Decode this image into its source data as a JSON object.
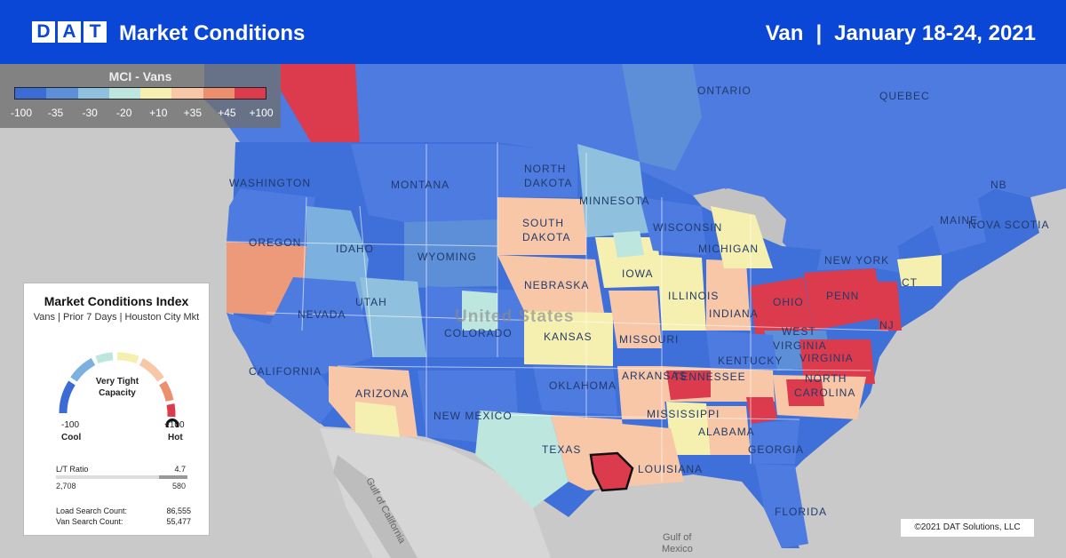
{
  "header": {
    "logo": [
      "D",
      "A",
      "T"
    ],
    "title": "Market Conditions",
    "equipment": "Van",
    "separator": "|",
    "date_range": "January 18-24, 2021"
  },
  "legend": {
    "title": "MCI - Vans",
    "colors": [
      "#3b6bd4",
      "#5d8fd8",
      "#8fc0de",
      "#bde6de",
      "#f6f0b0",
      "#f7c7a8",
      "#ec8f6f",
      "#db3b4c"
    ],
    "ticks": [
      "-100",
      "-35",
      "-30",
      "-20",
      "+10",
      "+35",
      "+45",
      "+100"
    ]
  },
  "map_labels": {
    "country": "United States",
    "regions": [
      "ONTARIO",
      "QUEBEC",
      "NORTH",
      "DAKOTA",
      "SOUTH",
      "DAKOTA",
      "WASHINGTON",
      "MONTANA",
      "MINNESOTA",
      "OREGON",
      "IDAHO",
      "WYOMING",
      "WISCONSIN",
      "MICHIGAN",
      "NEW YORK",
      "MAINE",
      "NB",
      "NOVA SCOTIA",
      "NEBRASKA",
      "IOWA",
      "NEVADA",
      "UTAH",
      "COLORADO",
      "KANSAS",
      "MISSOURI",
      "ILLINOIS",
      "INDIANA",
      "OHIO",
      "PENN",
      "NJ",
      "CT",
      "WEST",
      "VIRGINIA",
      "VIRGINIA",
      "KENTUCKY",
      "CALIFORNIA",
      "ARIZONA",
      "NEW MEXICO",
      "OKLAHOMA",
      "TEXAS",
      "ARKANSAS",
      "TENNESSEE",
      "NORTH",
      "CAROLINA",
      "MISSISSIPPI",
      "ALABAMA",
      "GEORGIA",
      "LOUISIANA",
      "FLORIDA"
    ],
    "waters": [
      "Gulf of California",
      "Gulf of",
      "Mexico"
    ]
  },
  "panel": {
    "title": "Market Conditions Index",
    "subtitle": "Vans | Prior 7 Days | Houston City Mkt",
    "status_line1": "Very Tight",
    "status_line2": "Capacity",
    "min": "-100",
    "min_label": "Cool",
    "max": "+100",
    "max_label": "Hot",
    "gauge_level": 100,
    "ratio_label": "L/T Ratio",
    "ratio_value": "4.7",
    "loads": "2,708",
    "trucks": "580",
    "load_search_label": "Load Search Count:",
    "load_search_value": "86,555",
    "van_search_label": "Van Search Count:",
    "van_search_value": "55,477"
  },
  "copyright": "©2021 DAT Solutions, LLC"
}
